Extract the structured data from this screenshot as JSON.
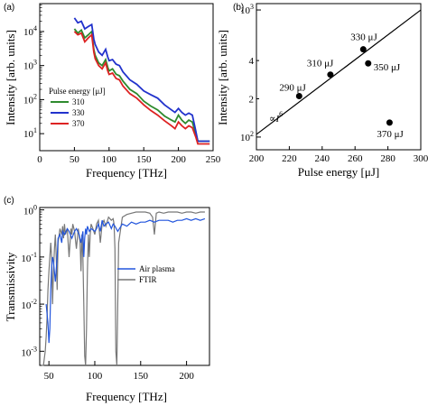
{
  "chart_data": [
    {
      "panel": "(a)",
      "type": "line",
      "xlabel": "Frequency [THz]",
      "ylabel": "Intensity [arb. units]",
      "xlim": [
        0,
        250
      ],
      "ylim_log10": [
        0.5,
        4.82
      ],
      "y_scale": "log",
      "xticks": [
        "0",
        "50",
        "100",
        "150",
        "200",
        "250"
      ],
      "yticks": [
        {
          "base": "10",
          "exp": "1",
          "log": 1
        },
        {
          "base": "10",
          "exp": "2",
          "log": 2
        },
        {
          "base": "10",
          "exp": "3",
          "log": 3
        },
        {
          "base": "10",
          "exp": "4",
          "log": 4
        }
      ],
      "legend_title": "Pulse energy [μJ]",
      "legend_placement": "middle-left",
      "series": [
        {
          "name": "310",
          "color": "#2e8b2e",
          "x": [
            50,
            55,
            60,
            65,
            70,
            75,
            78,
            80,
            85,
            90,
            95,
            98,
            100,
            105,
            110,
            115,
            120,
            130,
            140,
            150,
            160,
            170,
            180,
            190,
            195,
            200,
            205,
            210,
            215,
            220,
            225,
            228,
            245
          ],
          "y": [
            12000,
            9000,
            11000,
            6500,
            8000,
            10000,
            3000,
            2000,
            1200,
            1000,
            1500,
            900,
            700,
            800,
            560,
            500,
            350,
            200,
            150,
            90,
            65,
            50,
            33,
            25,
            22,
            35,
            25,
            20,
            25,
            22,
            10,
            6,
            6
          ]
        },
        {
          "name": "330",
          "color": "#2233cc",
          "x": [
            50,
            55,
            60,
            65,
            70,
            75,
            78,
            80,
            85,
            90,
            95,
            98,
            100,
            105,
            110,
            115,
            120,
            130,
            140,
            150,
            160,
            170,
            180,
            190,
            195,
            200,
            205,
            210,
            215,
            220,
            225,
            228,
            245
          ],
          "y": [
            25000,
            18000,
            20000,
            12000,
            14000,
            16000,
            6000,
            4200,
            2500,
            2000,
            3000,
            1800,
            1400,
            1500,
            1100,
            1000,
            650,
            380,
            280,
            180,
            140,
            110,
            70,
            50,
            42,
            55,
            42,
            35,
            40,
            35,
            12,
            6,
            6
          ]
        },
        {
          "name": "370",
          "color": "#dd2222",
          "x": [
            50,
            55,
            60,
            65,
            70,
            75,
            78,
            80,
            85,
            90,
            95,
            98,
            100,
            105,
            110,
            115,
            120,
            130,
            140,
            150,
            160,
            170,
            180,
            190,
            195,
            200,
            205,
            210,
            215,
            220,
            225,
            228,
            245
          ],
          "y": [
            10000,
            8000,
            9000,
            5000,
            6500,
            8000,
            2500,
            1600,
            1000,
            800,
            1200,
            700,
            550,
            600,
            420,
            380,
            250,
            150,
            110,
            70,
            48,
            35,
            24,
            17,
            14,
            22,
            17,
            14,
            17,
            15,
            8,
            5,
            5
          ]
        }
      ]
    },
    {
      "panel": "(b)",
      "type": "scatter",
      "xlabel": "Pulse energy [μJ]",
      "ylabel": "Intensity [arb. units]",
      "xlim": [
        200,
        300
      ],
      "ylim_log10": [
        1.9,
        3.05
      ],
      "y_scale": "log",
      "xticks": [
        "200",
        "220",
        "240",
        "260",
        "280",
        "300"
      ],
      "yticks_major": [
        {
          "base": "10",
          "exp": "2",
          "log": 2
        },
        {
          "base": "10",
          "exp": "3",
          "log": 3
        }
      ],
      "yticks_minor": [
        {
          "label": "2",
          "log": 2.301
        },
        {
          "label": "4",
          "log": 2.602
        },
        {
          "label": "2",
          "log": 3.301
        }
      ],
      "points": [
        {
          "x": 226,
          "y": 210,
          "label": "290 μJ"
        },
        {
          "x": 245,
          "y": 310,
          "label": "310 μJ"
        },
        {
          "x": 265,
          "y": 490,
          "label": "330 μJ"
        },
        {
          "x": 268,
          "y": 380,
          "label": "350 μJ"
        },
        {
          "x": 281,
          "y": 130,
          "label": "370 μJ"
        }
      ],
      "fit_line": {
        "x": [
          200,
          300
        ],
        "y": [
          105,
          1000
        ]
      },
      "annotation": {
        "prefix": "∝",
        "var": "I",
        "exp": "6"
      }
    },
    {
      "panel": "(c)",
      "type": "line",
      "xlabel": "Frequency [THz]",
      "ylabel": "Transmissivity",
      "xlim": [
        40,
        225
      ],
      "ylim_log10": [
        -3.3,
        0.05
      ],
      "y_scale": "log",
      "xticks": [
        "50",
        "100",
        "150",
        "200"
      ],
      "xtick_values": [
        50,
        100,
        150,
        200
      ],
      "yticks": [
        {
          "base": "10",
          "exp": "0",
          "log": 0
        },
        {
          "base": "10",
          "exp": "-1",
          "log": -1
        },
        {
          "base": "10",
          "exp": "-2",
          "log": -2
        },
        {
          "base": "10",
          "exp": "-3",
          "log": -3
        }
      ],
      "legend_placement": "right",
      "series": [
        {
          "name": "Air plasma",
          "color": "#2255dd",
          "x": [
            47,
            49,
            50,
            51,
            52,
            53,
            54,
            55,
            57,
            59,
            60,
            62,
            64,
            65,
            67,
            70,
            72,
            75,
            78,
            80,
            83,
            85,
            87,
            88,
            89,
            90,
            91,
            92,
            94,
            96,
            100,
            102,
            104,
            106,
            108,
            110,
            112,
            115,
            118,
            120,
            122,
            125,
            130,
            135,
            140,
            145,
            150,
            155,
            160,
            165,
            170,
            175,
            180,
            185,
            190,
            195,
            200,
            205,
            210,
            215,
            220
          ],
          "y": [
            0.01,
            0.004,
            0.0015,
            0.003,
            0.02,
            0.06,
            0.1,
            0.08,
            0.03,
            0.1,
            0.25,
            0.3,
            0.2,
            0.35,
            0.3,
            0.4,
            0.35,
            0.25,
            0.35,
            0.4,
            0.3,
            0.2,
            0.35,
            0.1,
            0.25,
            0.4,
            0.3,
            0.45,
            0.35,
            0.4,
            0.35,
            0.4,
            0.5,
            0.35,
            0.6,
            0.45,
            0.5,
            0.55,
            0.4,
            0.5,
            0.45,
            0.35,
            0.5,
            0.45,
            0.55,
            0.5,
            0.55,
            0.55,
            0.6,
            0.55,
            0.6,
            0.6,
            0.6,
            0.55,
            0.6,
            0.6,
            0.65,
            0.6,
            0.65,
            0.6,
            0.65
          ]
        },
        {
          "name": "FTIR",
          "color": "#777777",
          "x": [
            42,
            44,
            46,
            47,
            48,
            49,
            50,
            51,
            52,
            53,
            54,
            55,
            56,
            57,
            58,
            59,
            60,
            62,
            64,
            65,
            66,
            67,
            68,
            70,
            72,
            74,
            75,
            76,
            78,
            80,
            82,
            84,
            85,
            86,
            87,
            88,
            89,
            90,
            91,
            92,
            93,
            94,
            95,
            96,
            98,
            100,
            102,
            104,
            106,
            108,
            110,
            112,
            115,
            118,
            120,
            121,
            122,
            123,
            124,
            126,
            130,
            135,
            140,
            145,
            150,
            155,
            160,
            163,
            165,
            167,
            170,
            175,
            180,
            185,
            190,
            195,
            200,
            205,
            210,
            215,
            220
          ],
          "y": [
            0.0003,
            0.0004,
            0.001,
            0.002,
            0.005,
            0.02,
            0.05,
            0.1,
            0.2,
            0.1,
            0.01,
            0.05,
            0.15,
            0.3,
            0.1,
            0.02,
            0.2,
            0.4,
            0.3,
            0.45,
            0.25,
            0.5,
            0.3,
            0.4,
            0.1,
            0.4,
            0.3,
            0.5,
            0.35,
            0.15,
            0.4,
            0.2,
            0.05,
            0.3,
            0.1,
            0.01,
            0.0008,
            0.0003,
            0.003,
            0.05,
            0.3,
            0.1,
            0.3,
            0.5,
            0.4,
            0.3,
            0.5,
            0.6,
            0.2,
            0.5,
            0.6,
            0.45,
            0.7,
            0.6,
            0.65,
            0.5,
            0.15,
            0.001,
            0.0004,
            0.2,
            0.7,
            0.8,
            0.85,
            0.9,
            0.9,
            0.9,
            0.85,
            0.7,
            0.3,
            0.85,
            0.9,
            0.85,
            0.9,
            0.9,
            0.9,
            0.85,
            0.9,
            0.9,
            0.85,
            0.9,
            0.9
          ]
        }
      ]
    }
  ]
}
